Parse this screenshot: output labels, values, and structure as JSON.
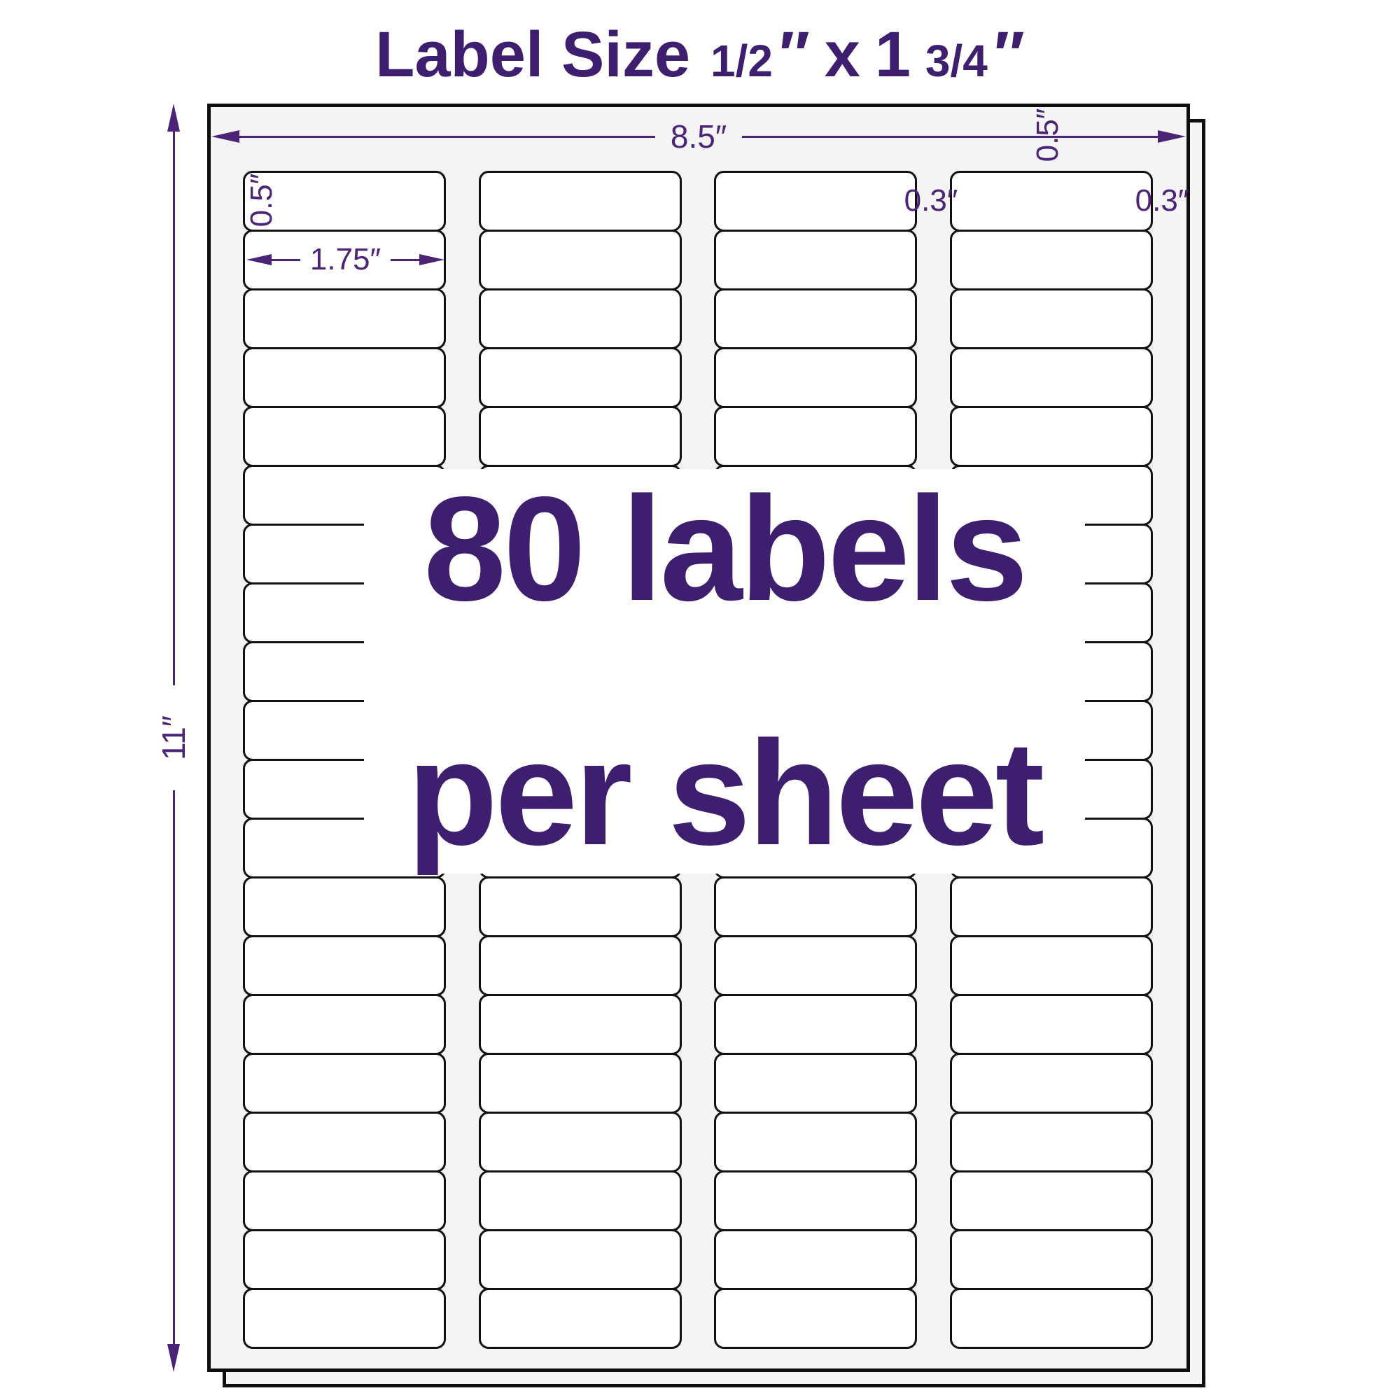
{
  "title": {
    "part1": "Label Size",
    "frac1": "1/2",
    "quote1": "″",
    "sep": "x",
    "int2": "1",
    "frac2": "3/4",
    "quote2": "″"
  },
  "sheet": {
    "width_label": "8.5″",
    "height_label": "11″",
    "top_margin_label": "0.5″",
    "label_height_label": "0.5″",
    "label_width_label": "1.75″",
    "column_gap_label": "0.3″",
    "right_margin_label": "0.3″"
  },
  "overlay": {
    "line1": "80 labels",
    "line2": "per sheet"
  },
  "grid": {
    "columns": 4,
    "rows": 20,
    "total_labels": 80
  },
  "colors": {
    "purple_text": "#3E1F6F",
    "purple_line": "#4B2377",
    "sheet_bg": "#F4F4F4",
    "label_fill": "#FFFFFF",
    "border_black": "#0E0E0E"
  }
}
